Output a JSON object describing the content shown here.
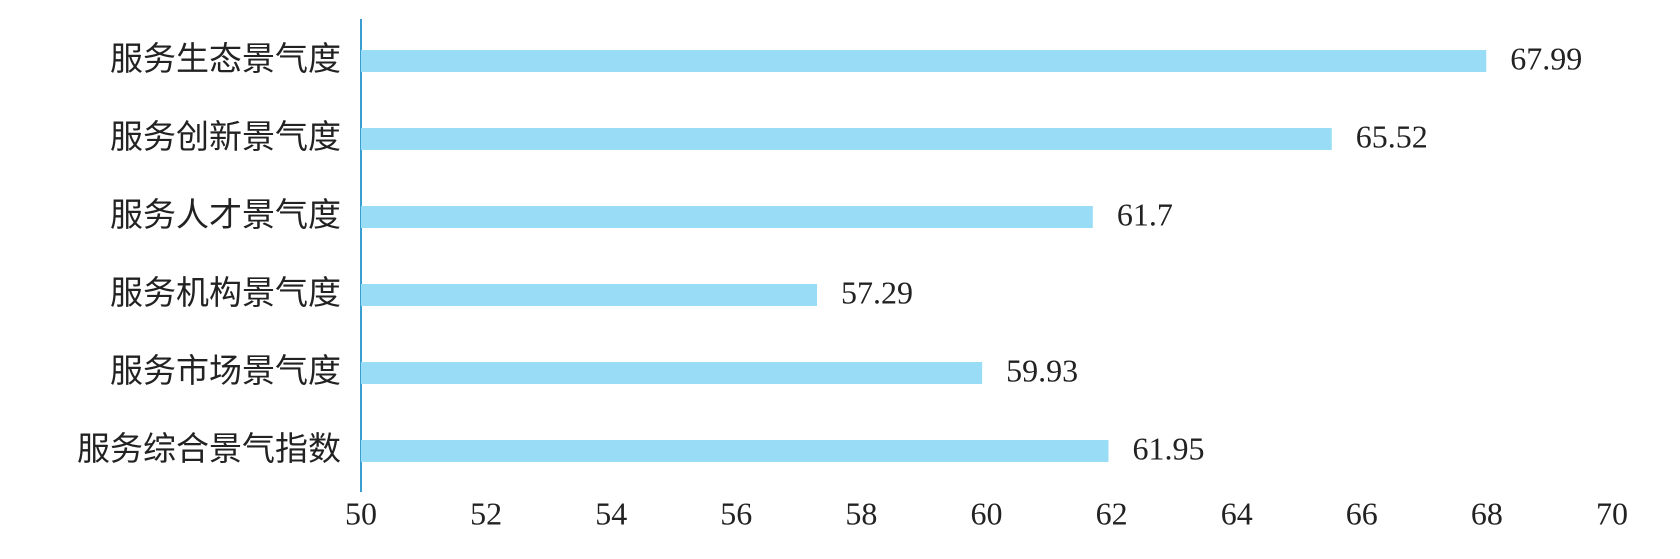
{
  "chart_data": {
    "type": "bar",
    "orientation": "horizontal",
    "categories": [
      "服务生态景气度",
      "服务创新景气度",
      "服务人才景气度",
      "服务机构景气度",
      "服务市场景气度",
      "服务综合景气指数"
    ],
    "values": [
      67.99,
      65.52,
      61.7,
      57.29,
      59.93,
      61.95
    ],
    "color": "#99dcf5",
    "xlim": [
      50,
      70
    ],
    "xticks": [
      50,
      52,
      54,
      56,
      58,
      60,
      62,
      64,
      66,
      68,
      70
    ],
    "grid": false
  }
}
